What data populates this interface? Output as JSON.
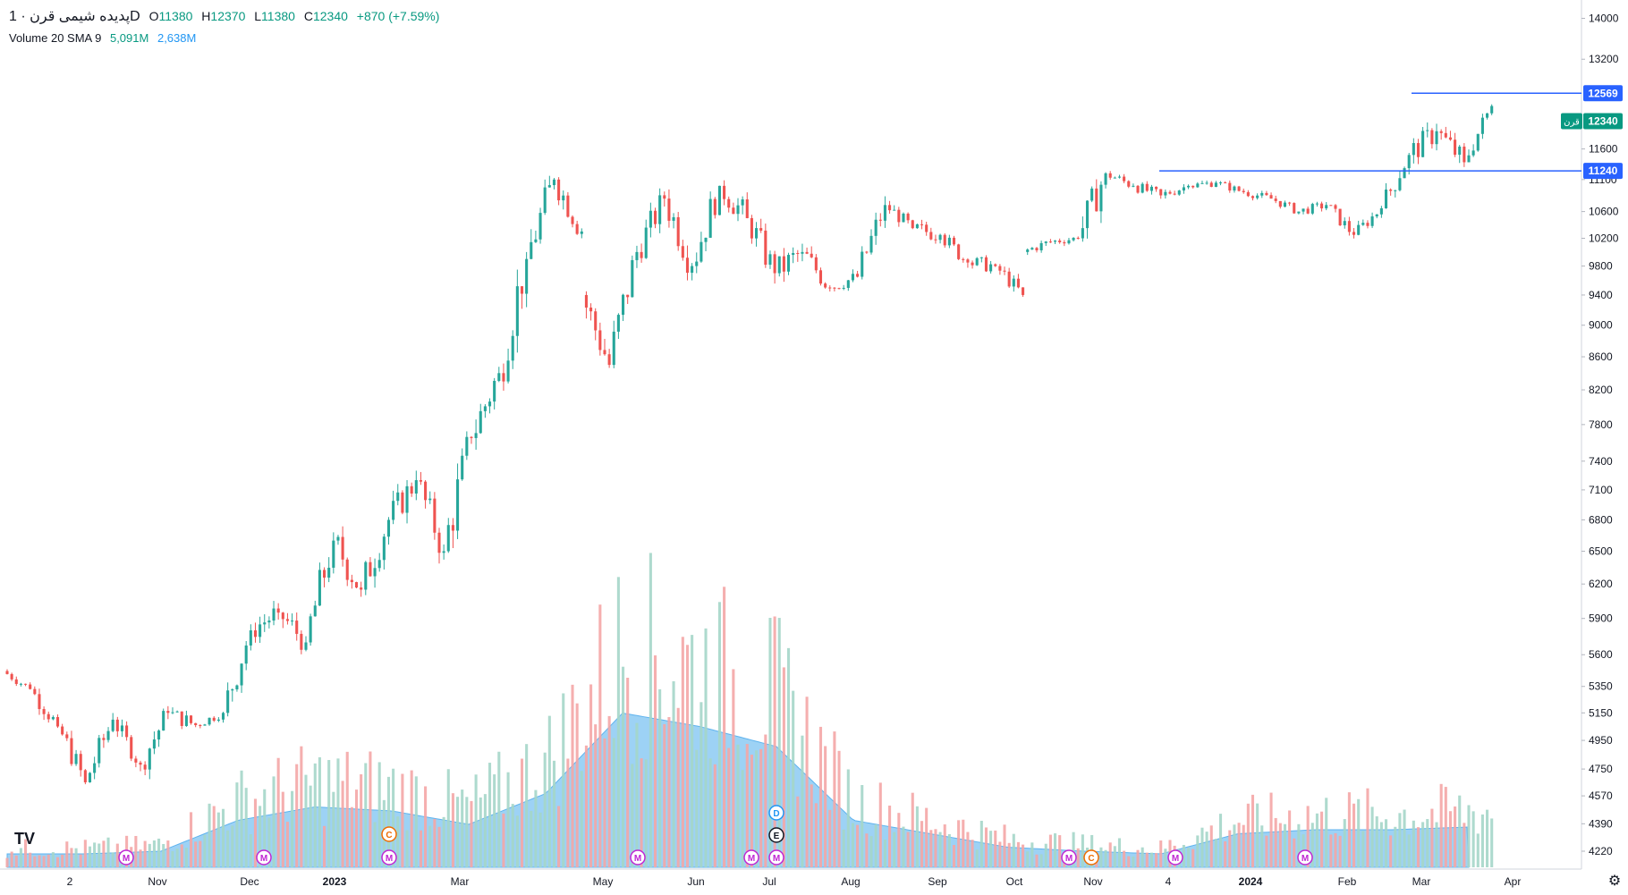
{
  "header": {
    "symbol_name": "پدیده شیمی قرن · 1D",
    "o_label": "O",
    "o_value": "11380",
    "h_label": "H",
    "h_value": "12370",
    "l_label": "L",
    "l_value": "11380",
    "c_label": "C",
    "c_value": "12340",
    "change": "+870 (+7.59%)"
  },
  "volume_legend": {
    "name": "Volume 20 SMA 9",
    "volume_value": "5,091M",
    "sma_value": "2,638M"
  },
  "price_axis": {
    "ticks": [
      4220,
      4390,
      4570,
      4750,
      4950,
      5150,
      5350,
      5600,
      5900,
      6200,
      6500,
      6800,
      7100,
      7400,
      7800,
      8200,
      8600,
      9000,
      9400,
      9800,
      10200,
      10600,
      11100,
      11600,
      13200,
      14000
    ],
    "scale": "log"
  },
  "time_axis": {
    "labels": [
      "2",
      "Nov",
      "Dec",
      "2023",
      "Mar",
      "May",
      "Jun",
      "Jul",
      "Aug",
      "Sep",
      "Oct",
      "Nov",
      "4",
      "2024",
      "Feb",
      "Mar",
      "Apr"
    ],
    "bold_labels": [
      "2023",
      "2024"
    ]
  },
  "price_labels": {
    "upper_line": "12569",
    "last_price": "12340",
    "symbol_tag": "قرن",
    "lower_line": "11240"
  },
  "colors": {
    "up": "#26a69a",
    "down": "#ef5350",
    "vol_up": "#a5d6c9",
    "vol_down": "#f4a6a6",
    "sma_fill": "#7cc3f2",
    "line": "#2962ff",
    "last_tag": "#089981"
  },
  "event_markers": [
    "M",
    "M",
    "C",
    "M",
    "M",
    "M",
    "M",
    "D",
    "E",
    "M",
    "C",
    "M",
    "M"
  ],
  "chart_data": {
    "type": "candlestick",
    "title": "پدیده شیمی قرن · 1D",
    "series": [
      {
        "name": "Price",
        "values": [
          {
            "x": "Oct 2022",
            "open": 5470,
            "high": 5510,
            "low": 5300,
            "close": 5330
          },
          {
            "x": "early Oct",
            "open": 5330,
            "high": 5350,
            "low": 4980,
            "close": 5050
          },
          {
            "x": "mid Oct",
            "open": 5050,
            "high": 5100,
            "low": 4620,
            "close": 4660
          },
          {
            "x": "late Oct",
            "open": 4660,
            "high": 5190,
            "low": 4640,
            "close": 5100
          },
          {
            "x": "Nov",
            "open": 5100,
            "high": 5120,
            "low": 4730,
            "close": 4780
          },
          {
            "x": "mid Nov",
            "open": 4780,
            "high": 5200,
            "low": 4650,
            "close": 5150
          },
          {
            "x": "late Nov",
            "open": 5150,
            "high": 5330,
            "low": 4980,
            "close": 5060
          },
          {
            "x": "Dec",
            "open": 5060,
            "high": 5200,
            "low": 5000,
            "close": 5150
          },
          {
            "x": "mid Dec",
            "open": 5150,
            "high": 5900,
            "low": 5100,
            "close": 5800
          },
          {
            "x": "late Dec",
            "open": 5800,
            "high": 6100,
            "low": 5500,
            "close": 5950
          },
          {
            "x": "2023",
            "open": 5950,
            "high": 6100,
            "low": 5450,
            "close": 5700
          },
          {
            "x": "Jan",
            "open": 5700,
            "high": 6700,
            "low": 5600,
            "close": 6600
          },
          {
            "x": "Feb",
            "open": 6600,
            "high": 6900,
            "low": 5950,
            "close": 6150
          },
          {
            "x": "late Feb",
            "open": 6150,
            "high": 7000,
            "low": 6000,
            "close": 6800
          },
          {
            "x": "Mar",
            "open": 6800,
            "high": 7600,
            "low": 6700,
            "close": 7200
          },
          {
            "x": "mid Mar",
            "open": 7200,
            "high": 7300,
            "low": 6300,
            "close": 6500
          },
          {
            "x": "Apr",
            "open": 6500,
            "high": 7800,
            "low": 6300,
            "close": 7650
          },
          {
            "x": "mid Apr",
            "open": 7650,
            "high": 8600,
            "low": 7300,
            "close": 8400
          },
          {
            "x": "late Apr",
            "open": 8400,
            "high": 10000,
            "low": 8000,
            "close": 9900
          },
          {
            "x": "May",
            "open": 9900,
            "high": 11450,
            "low": 9700,
            "close": 11100
          },
          {
            "x": "early May",
            "open": 11100,
            "high": 11450,
            "low": 10200,
            "close": 10300
          },
          {
            "x": "mid May",
            "open": 9400,
            "high": 9450,
            "low": 8100,
            "close": 8500
          },
          {
            "x": "late May",
            "open": 8500,
            "high": 10100,
            "low": 8400,
            "close": 10000
          },
          {
            "x": "Jun",
            "open": 10000,
            "high": 11000,
            "low": 9700,
            "close": 10800
          },
          {
            "x": "mid Jun",
            "open": 10800,
            "high": 11100,
            "low": 9600,
            "close": 9800
          },
          {
            "x": "late Jun",
            "open": 9800,
            "high": 11200,
            "low": 9700,
            "close": 11000
          },
          {
            "x": "Jul",
            "open": 11000,
            "high": 11600,
            "low": 10300,
            "close": 10500
          },
          {
            "x": "mid Jul",
            "open": 10500,
            "high": 10700,
            "low": 9400,
            "close": 9700
          },
          {
            "x": "Aug",
            "open": 9700,
            "high": 10400,
            "low": 9200,
            "close": 10000
          },
          {
            "x": "mid Aug",
            "open": 10000,
            "high": 10200,
            "low": 9300,
            "close": 9500
          },
          {
            "x": "late Aug",
            "open": 9500,
            "high": 9800,
            "low": 9250,
            "close": 9650
          },
          {
            "x": "Sep",
            "open": 9650,
            "high": 10850,
            "low": 9600,
            "close": 10700
          },
          {
            "x": "mid Sep",
            "open": 10700,
            "high": 10800,
            "low": 10200,
            "close": 10350
          },
          {
            "x": "late Sep",
            "open": 10350,
            "high": 10700,
            "low": 10000,
            "close": 10250
          },
          {
            "x": "Oct",
            "open": 10250,
            "high": 10350,
            "low": 9700,
            "close": 9850
          },
          {
            "x": "mid Oct",
            "open": 9850,
            "high": 10200,
            "low": 9600,
            "close": 9800
          },
          {
            "x": "late Oct",
            "open": 9800,
            "high": 9900,
            "low": 9300,
            "close": 9400
          },
          {
            "x": "Nov",
            "open": 10000,
            "high": 10300,
            "low": 9900,
            "close": 10150
          },
          {
            "x": "mid Nov",
            "open": 10150,
            "high": 10300,
            "low": 9950,
            "close": 10200
          },
          {
            "x": "late Nov",
            "open": 10200,
            "high": 11700,
            "low": 10150,
            "close": 11200
          },
          {
            "x": "Dec 4",
            "open": 11200,
            "high": 11300,
            "low": 10800,
            "close": 11000
          },
          {
            "x": "mid Dec",
            "open": 11000,
            "high": 11150,
            "low": 10650,
            "close": 10850
          },
          {
            "x": "late Dec",
            "open": 10850,
            "high": 11150,
            "low": 10700,
            "close": 11000
          },
          {
            "x": "2024",
            "open": 11000,
            "high": 11200,
            "low": 10850,
            "close": 11050
          },
          {
            "x": "Jan",
            "open": 11050,
            "high": 11150,
            "low": 10800,
            "close": 10900
          },
          {
            "x": "mid Jan",
            "open": 10900,
            "high": 11050,
            "low": 10700,
            "close": 10800
          },
          {
            "x": "late Jan",
            "open": 10800,
            "high": 10900,
            "low": 10500,
            "close": 10600
          },
          {
            "x": "Feb",
            "open": 10600,
            "high": 10950,
            "low": 10550,
            "close": 10700
          },
          {
            "x": "mid Feb",
            "open": 10700,
            "high": 10750,
            "low": 10150,
            "close": 10250
          },
          {
            "x": "late Feb",
            "open": 10250,
            "high": 10750,
            "low": 10200,
            "close": 10650
          },
          {
            "x": "Mar",
            "open": 10650,
            "high": 11600,
            "low": 10550,
            "close": 11500
          },
          {
            "x": "early Mar",
            "open": 11500,
            "high": 12569,
            "low": 11350,
            "close": 11900
          },
          {
            "x": "mid Mar",
            "open": 11900,
            "high": 12450,
            "low": 11240,
            "close": 11380
          },
          {
            "x": "last",
            "open": 11380,
            "high": 12370,
            "low": 11380,
            "close": 12340
          }
        ]
      },
      {
        "name": "Volume 20 SMA 9",
        "values": [
          {
            "x": "Oct 2022",
            "v": 0.1
          },
          {
            "x": "Nov",
            "v": 0.1
          },
          {
            "x": "Dec",
            "v": 0.12
          },
          {
            "x": "mid Dec",
            "v": 0.35
          },
          {
            "x": "2023",
            "v": 0.45
          },
          {
            "x": "Feb",
            "v": 0.42
          },
          {
            "x": "Mar",
            "v": 0.32
          },
          {
            "x": "Apr",
            "v": 0.55
          },
          {
            "x": "May",
            "v": 1.15
          },
          {
            "x": "mid May",
            "v": 1.05
          },
          {
            "x": "Jun",
            "v": 0.9
          },
          {
            "x": "Jul",
            "v": 0.35
          },
          {
            "x": "Aug",
            "v": 0.25
          },
          {
            "x": "Sep",
            "v": 0.15
          },
          {
            "x": "Oct",
            "v": 0.12
          },
          {
            "x": "Nov",
            "v": 0.1
          },
          {
            "x": "Dec",
            "v": 0.25
          },
          {
            "x": "2024",
            "v": 0.28
          },
          {
            "x": "Feb",
            "v": 0.28
          },
          {
            "x": "Mar",
            "v": 0.3
          }
        ]
      }
    ],
    "horizontal_lines": [
      12569,
      11240
    ],
    "ylim": [
      4150,
      14100
    ],
    "y_scale": "log",
    "grid": false,
    "xlabel": "",
    "ylabel": ""
  }
}
